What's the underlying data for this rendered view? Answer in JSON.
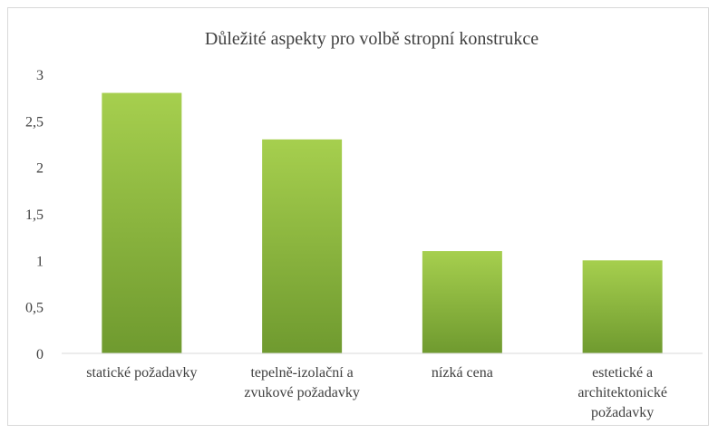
{
  "chart_data": {
    "type": "bar",
    "title": "Důležité  aspekty pro volbě stropní konstrukce",
    "categories": [
      [
        "statické požadavky"
      ],
      [
        "tepelně-izolační a",
        "zvukové požadavky"
      ],
      [
        "nízká cena"
      ],
      [
        "estetické a",
        "architektonické",
        "požadavky"
      ]
    ],
    "values": [
      2.8,
      2.3,
      1.1,
      1.0
    ],
    "ylim": [
      0,
      3
    ],
    "yticks": [
      "0",
      "0,5",
      "1",
      "1,5",
      "2",
      "2,5",
      "3"
    ],
    "grid": false,
    "legend": "none",
    "colors": {
      "bar_top": "#a6cf4e",
      "bar_bottom": "#6f9a2f",
      "axis": "#d9d9d9",
      "text": "#404040"
    }
  }
}
